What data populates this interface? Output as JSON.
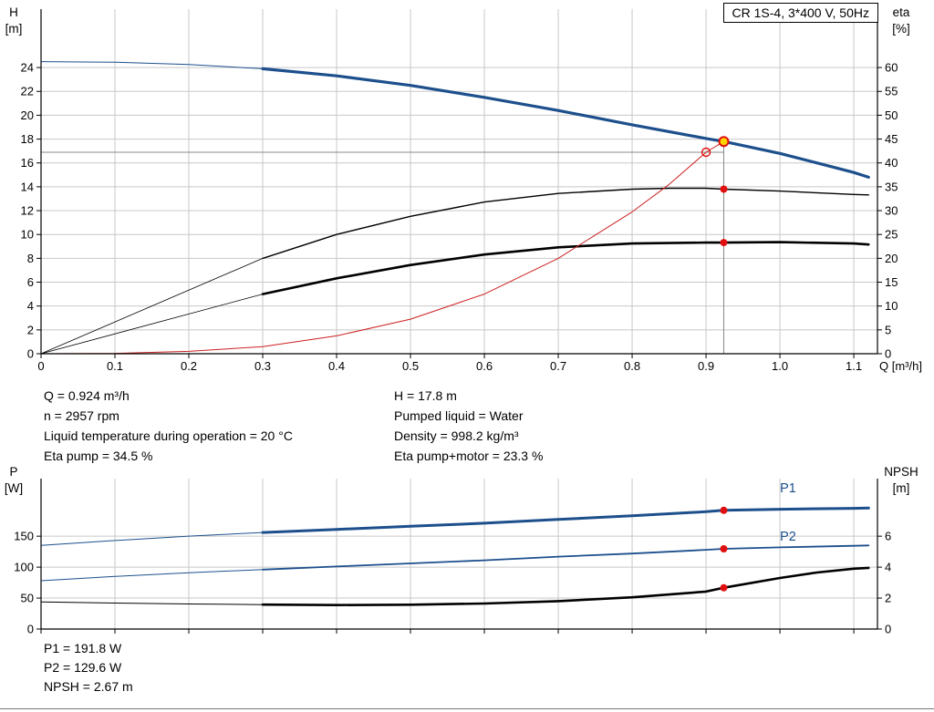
{
  "colors": {
    "curve_blue": "#1c4f8c",
    "curve_black": "#000000",
    "curve_red": "#cc2020",
    "marker_red": "#e01010",
    "marker_yellow": "#ffd400",
    "crosshair": "#888888",
    "grid": "#c8c8c8",
    "axis": "#000000"
  },
  "info_top": {
    "left": [
      "Q = 0.924 m³/h",
      "n = 2957 rpm",
      "Liquid temperature during operation = 20 °C",
      "Eta pump = 34.5 %"
    ],
    "right": [
      "H = 17.8 m",
      "Pumped liquid = Water",
      "Density = 998.2 kg/m³",
      "Eta pump+motor = 23.3 %"
    ]
  },
  "info_bottom": [
    "P1 = 191.8 W",
    "P2 = 129.6 W",
    "NPSH = 2.67 m"
  ],
  "chart_data": [
    {
      "type": "line",
      "name": "qh-eta-chart",
      "title": "CR 1S-4, 3*400 V, 50Hz",
      "x_axis": {
        "label": "Q [m³/h]",
        "min": 0,
        "max": 1.132,
        "ticks": [
          0,
          0.1,
          0.2,
          0.3,
          0.4,
          0.5,
          0.6,
          0.7,
          0.8,
          0.9,
          1.0,
          1.1
        ],
        "tick_labels": [
          "0",
          "0.1",
          "0.2",
          "0.3",
          "0.4",
          "0.5",
          "0.6",
          "0.7",
          "0.8",
          "0.9",
          "1.0",
          "1.1"
        ],
        "show_tick_labels": true
      },
      "left_axis": {
        "title": [
          "H",
          "[m]"
        ],
        "min": 0,
        "max": 28.9,
        "ticks": [
          0,
          2,
          4,
          6,
          8,
          10,
          12,
          14,
          16,
          18,
          20,
          22,
          24
        ]
      },
      "right_axis": {
        "title": [
          "eta",
          "[%]"
        ],
        "min": 0,
        "max": 72.25,
        "ticks": [
          0,
          5,
          10,
          15,
          20,
          25,
          30,
          35,
          40,
          45,
          50,
          55,
          60
        ]
      },
      "series": [
        {
          "name": "qh-curve-low-flow",
          "axis": "left",
          "color": "blue",
          "width": 1,
          "points": [
            [
              0,
              24.5
            ],
            [
              0.1,
              24.45
            ],
            [
              0.2,
              24.25
            ],
            [
              0.3,
              23.9
            ]
          ]
        },
        {
          "name": "qh-curve",
          "axis": "left",
          "color": "blue",
          "width": 3.2,
          "points": [
            [
              0.3,
              23.9
            ],
            [
              0.4,
              23.3
            ],
            [
              0.5,
              22.5
            ],
            [
              0.6,
              21.5
            ],
            [
              0.7,
              20.4
            ],
            [
              0.8,
              19.2
            ],
            [
              0.9,
              18.05
            ],
            [
              0.924,
              17.8
            ],
            [
              1.0,
              16.8
            ],
            [
              1.05,
              16.0
            ],
            [
              1.1,
              15.2
            ],
            [
              1.12,
              14.8
            ]
          ]
        },
        {
          "name": "eta-pump-low-flow",
          "axis": "right",
          "color": "black",
          "width": 0.8,
          "points": [
            [
              0,
              0
            ],
            [
              0.3,
              20
            ]
          ]
        },
        {
          "name": "eta-pump-curve",
          "axis": "right",
          "color": "black",
          "width": 1.4,
          "points": [
            [
              0.3,
              20
            ],
            [
              0.4,
              25
            ],
            [
              0.5,
              28.8
            ],
            [
              0.6,
              31.8
            ],
            [
              0.7,
              33.6
            ],
            [
              0.8,
              34.5
            ],
            [
              0.85,
              34.7
            ],
            [
              0.9,
              34.7
            ],
            [
              0.924,
              34.5
            ],
            [
              1.0,
              34.1
            ],
            [
              1.1,
              33.4
            ],
            [
              1.12,
              33.3
            ]
          ]
        },
        {
          "name": "eta-pump-motor-low-flow",
          "axis": "right",
          "color": "black",
          "width": 0.8,
          "points": [
            [
              0,
              0
            ],
            [
              0.3,
              12.5
            ]
          ]
        },
        {
          "name": "eta-pump-motor-curve",
          "axis": "right",
          "color": "black",
          "width": 2.6,
          "points": [
            [
              0.3,
              12.5
            ],
            [
              0.4,
              15.8
            ],
            [
              0.5,
              18.6
            ],
            [
              0.6,
              20.8
            ],
            [
              0.7,
              22.3
            ],
            [
              0.8,
              23.1
            ],
            [
              0.9,
              23.3
            ],
            [
              0.924,
              23.3
            ],
            [
              1.0,
              23.4
            ],
            [
              1.1,
              23.1
            ],
            [
              1.12,
              22.9
            ]
          ]
        },
        {
          "name": "system-curve",
          "axis": "left",
          "color": "red",
          "width": 1,
          "points": [
            [
              0,
              0
            ],
            [
              0.1,
              0.03
            ],
            [
              0.2,
              0.2
            ],
            [
              0.3,
              0.6
            ],
            [
              0.4,
              1.5
            ],
            [
              0.5,
              2.9
            ],
            [
              0.6,
              5.0
            ],
            [
              0.7,
              8.0
            ],
            [
              0.8,
              11.9
            ],
            [
              0.85,
              14.2
            ],
            [
              0.9,
              16.9
            ],
            [
              0.924,
              17.8
            ]
          ]
        }
      ],
      "crosshair": {
        "vline": {
          "x": 0.924,
          "y_from": 0,
          "y_to": 17.8
        },
        "hline": {
          "y": 16.9,
          "x_from": 0,
          "x_to": 0.924
        }
      },
      "markers": [
        {
          "name": "duty-point-qh",
          "style": "yellow-dot",
          "axis": "left",
          "x": 0.924,
          "y": 17.8
        },
        {
          "name": "requested-duty-point",
          "style": "open-circle",
          "axis": "left",
          "x": 0.9,
          "y": 16.9
        },
        {
          "name": "duty-point-eta-pump",
          "style": "red-dot",
          "axis": "right",
          "x": 0.924,
          "y": 34.5
        },
        {
          "name": "duty-point-eta-pump-motor",
          "style": "red-dot",
          "axis": "right",
          "x": 0.924,
          "y": 23.3
        }
      ],
      "labels": []
    },
    {
      "type": "line",
      "name": "power-npsh-chart",
      "x_axis": {
        "label": "",
        "min": 0,
        "max": 1.132,
        "ticks": [
          0,
          0.1,
          0.2,
          0.3,
          0.4,
          0.5,
          0.6,
          0.7,
          0.8,
          0.9,
          1.0,
          1.1
        ],
        "tick_labels": [],
        "show_tick_labels": false
      },
      "left_axis": {
        "title": [
          "P",
          "[W]"
        ],
        "min": 0,
        "max": 243,
        "ticks": [
          0,
          50,
          100,
          150
        ]
      },
      "right_axis": {
        "title": [
          "NPSH",
          "[m]"
        ],
        "min": 0,
        "max": 9.72,
        "ticks": [
          0,
          2,
          4,
          6
        ]
      },
      "series": [
        {
          "name": "p1-low-flow",
          "axis": "left",
          "color": "blue",
          "width": 1,
          "points": [
            [
              0,
              135
            ],
            [
              0.1,
              143
            ],
            [
              0.2,
              150
            ],
            [
              0.3,
              156
            ]
          ]
        },
        {
          "name": "p1-curve",
          "axis": "left",
          "color": "blue",
          "width": 3,
          "points": [
            [
              0.3,
              156
            ],
            [
              0.4,
              161
            ],
            [
              0.5,
              166
            ],
            [
              0.6,
              171
            ],
            [
              0.7,
              177
            ],
            [
              0.8,
              183
            ],
            [
              0.9,
              189.5
            ],
            [
              0.924,
              191.8
            ],
            [
              1.0,
              193.5
            ],
            [
              1.1,
              195
            ],
            [
              1.12,
              195.5
            ]
          ]
        },
        {
          "name": "p2-low-flow",
          "axis": "left",
          "color": "blue",
          "width": 1,
          "points": [
            [
              0,
              78
            ],
            [
              0.1,
              85
            ],
            [
              0.2,
              91
            ],
            [
              0.3,
              96
            ]
          ]
        },
        {
          "name": "p2-curve",
          "axis": "left",
          "color": "blue",
          "width": 1.8,
          "points": [
            [
              0.3,
              96
            ],
            [
              0.4,
              101
            ],
            [
              0.5,
              106
            ],
            [
              0.6,
              111
            ],
            [
              0.7,
              117
            ],
            [
              0.8,
              122
            ],
            [
              0.9,
              128
            ],
            [
              0.924,
              129.6
            ],
            [
              1.0,
              132
            ],
            [
              1.1,
              134.5
            ],
            [
              1.12,
              135
            ]
          ]
        },
        {
          "name": "npsh-low-flow",
          "axis": "right",
          "color": "black",
          "width": 1,
          "points": [
            [
              0,
              1.75
            ],
            [
              0.1,
              1.68
            ],
            [
              0.2,
              1.62
            ],
            [
              0.3,
              1.58
            ]
          ]
        },
        {
          "name": "npsh-curve",
          "axis": "right",
          "color": "black",
          "width": 2.6,
          "points": [
            [
              0.3,
              1.58
            ],
            [
              0.4,
              1.55
            ],
            [
              0.5,
              1.57
            ],
            [
              0.6,
              1.65
            ],
            [
              0.7,
              1.8
            ],
            [
              0.8,
              2.05
            ],
            [
              0.9,
              2.42
            ],
            [
              0.924,
              2.67
            ],
            [
              1.0,
              3.3
            ],
            [
              1.05,
              3.65
            ],
            [
              1.1,
              3.9
            ],
            [
              1.12,
              3.95
            ]
          ]
        }
      ],
      "markers": [
        {
          "name": "duty-point-p1",
          "style": "red-dot",
          "axis": "left",
          "x": 0.924,
          "y": 191.8
        },
        {
          "name": "duty-point-p2",
          "style": "red-dot",
          "axis": "left",
          "x": 0.924,
          "y": 129.6
        },
        {
          "name": "duty-point-npsh",
          "style": "red-dot",
          "axis": "right",
          "x": 0.924,
          "y": 2.67
        }
      ],
      "labels": [
        {
          "name": "p1-curve-label",
          "text": "P1",
          "x": 1.0,
          "y": 221,
          "axis": "left",
          "color": "blue"
        },
        {
          "name": "p2-curve-label",
          "text": "P2",
          "x": 1.0,
          "y": 143,
          "axis": "left",
          "color": "blue"
        }
      ]
    }
  ]
}
